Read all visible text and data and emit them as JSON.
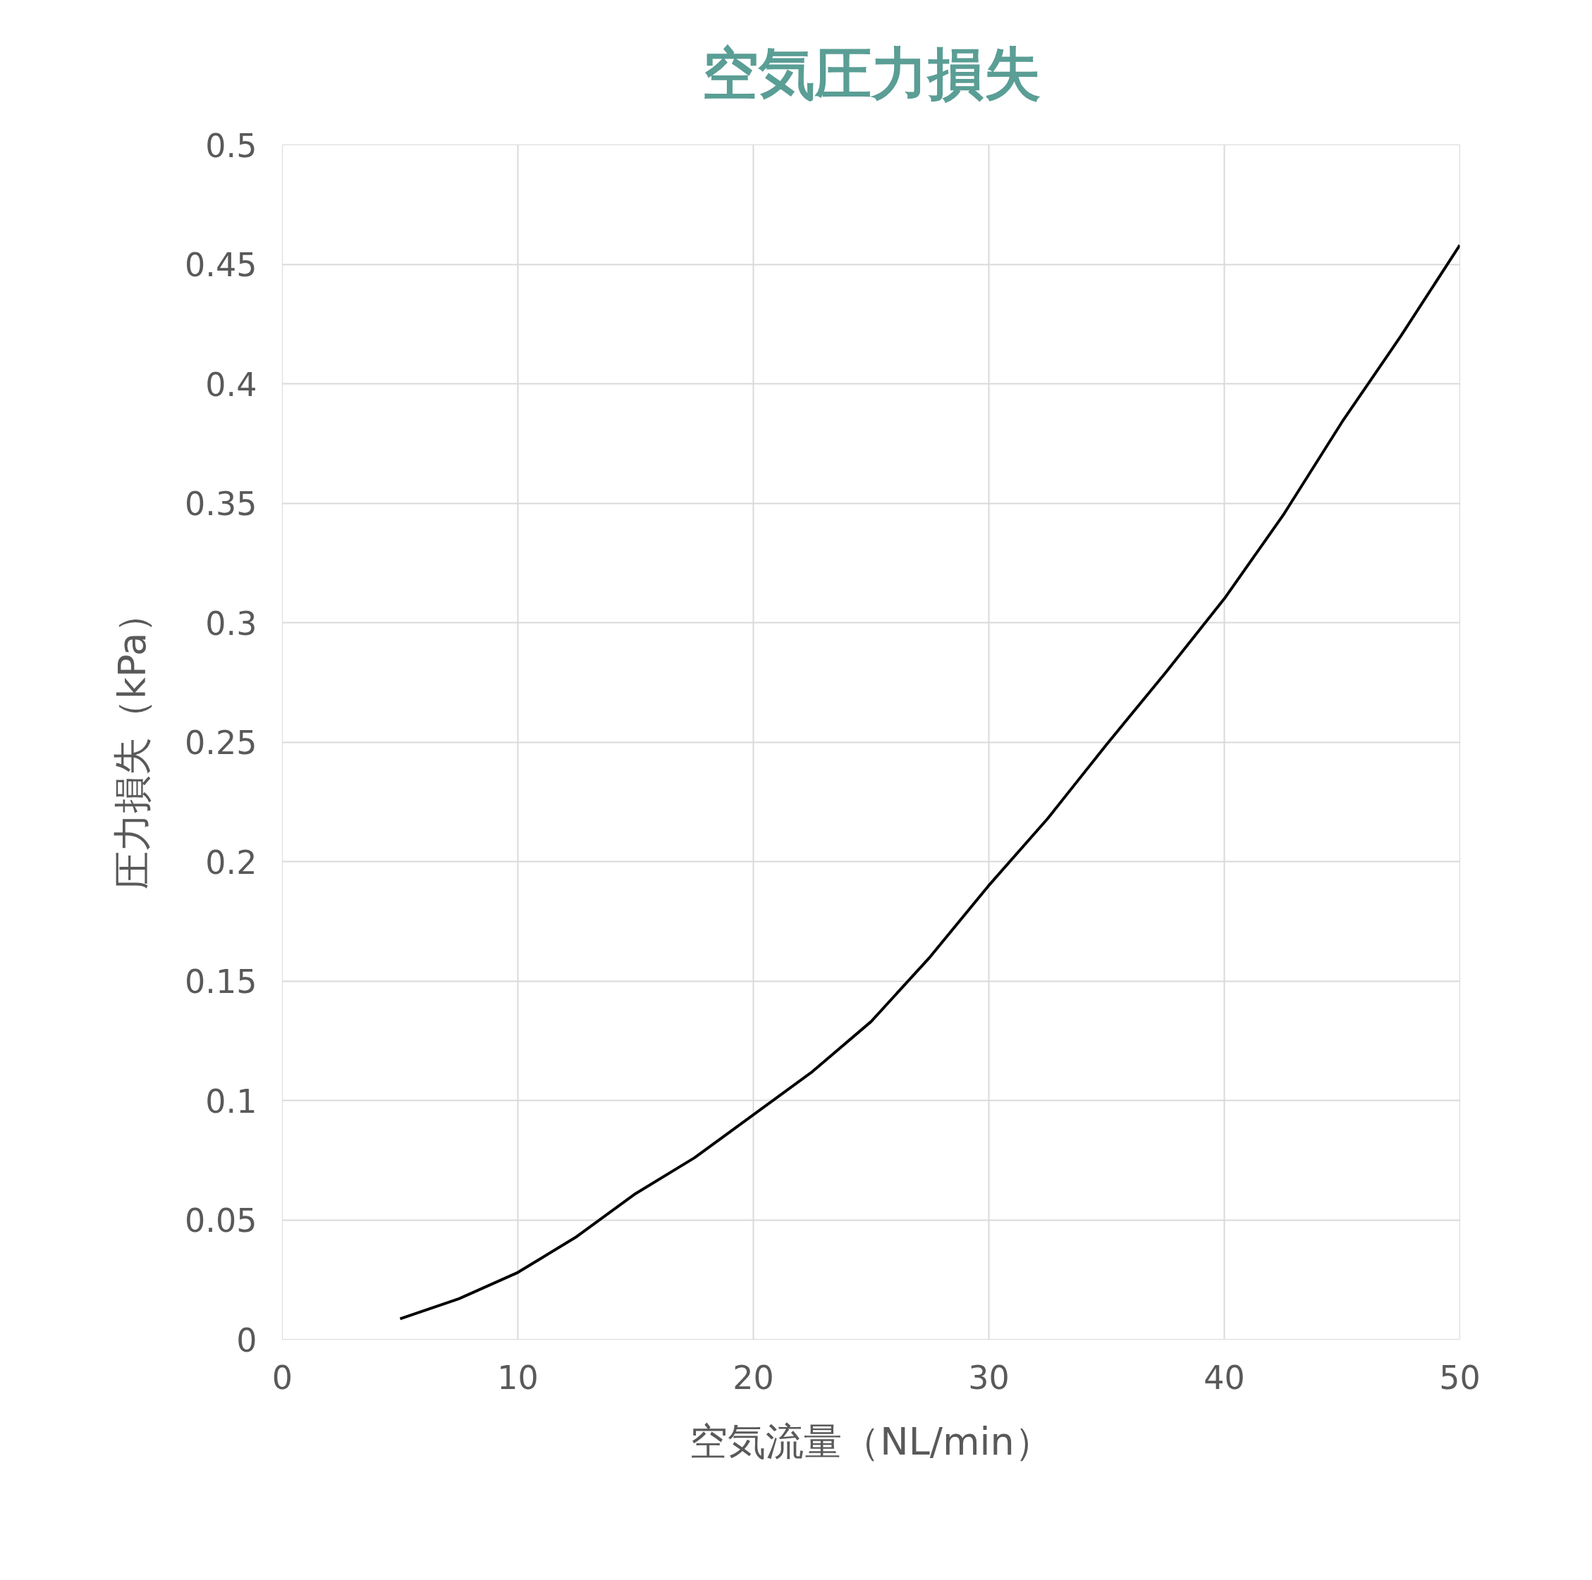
{
  "chart_data": {
    "type": "line",
    "title": "空気圧力損失",
    "xlabel": "空気流量（NL/min）",
    "ylabel": "圧力損失（kPa）",
    "x": [
      5,
      7.5,
      10,
      12.5,
      15,
      17.5,
      20,
      22.5,
      25,
      27.5,
      30,
      32.5,
      35,
      37.5,
      40,
      42.5,
      45,
      47.5,
      50
    ],
    "series": [
      {
        "color": "#000000",
        "values": [
          0.0086,
          0.017,
          0.028,
          0.043,
          0.061,
          0.076,
          0.094,
          0.112,
          0.133,
          0.16,
          0.19,
          0.218,
          0.249,
          0.279,
          0.31,
          0.345,
          0.384,
          0.42,
          0.458
        ]
      }
    ],
    "xlim": [
      0,
      50
    ],
    "ylim": [
      0,
      0.5
    ],
    "xticks": [
      0,
      10,
      20,
      30,
      40,
      50
    ],
    "yticks": [
      0,
      0.05,
      0.1,
      0.15,
      0.2,
      0.25,
      0.3,
      0.35,
      0.4,
      0.45,
      0.5
    ],
    "grid": true,
    "line_style": "solid"
  }
}
